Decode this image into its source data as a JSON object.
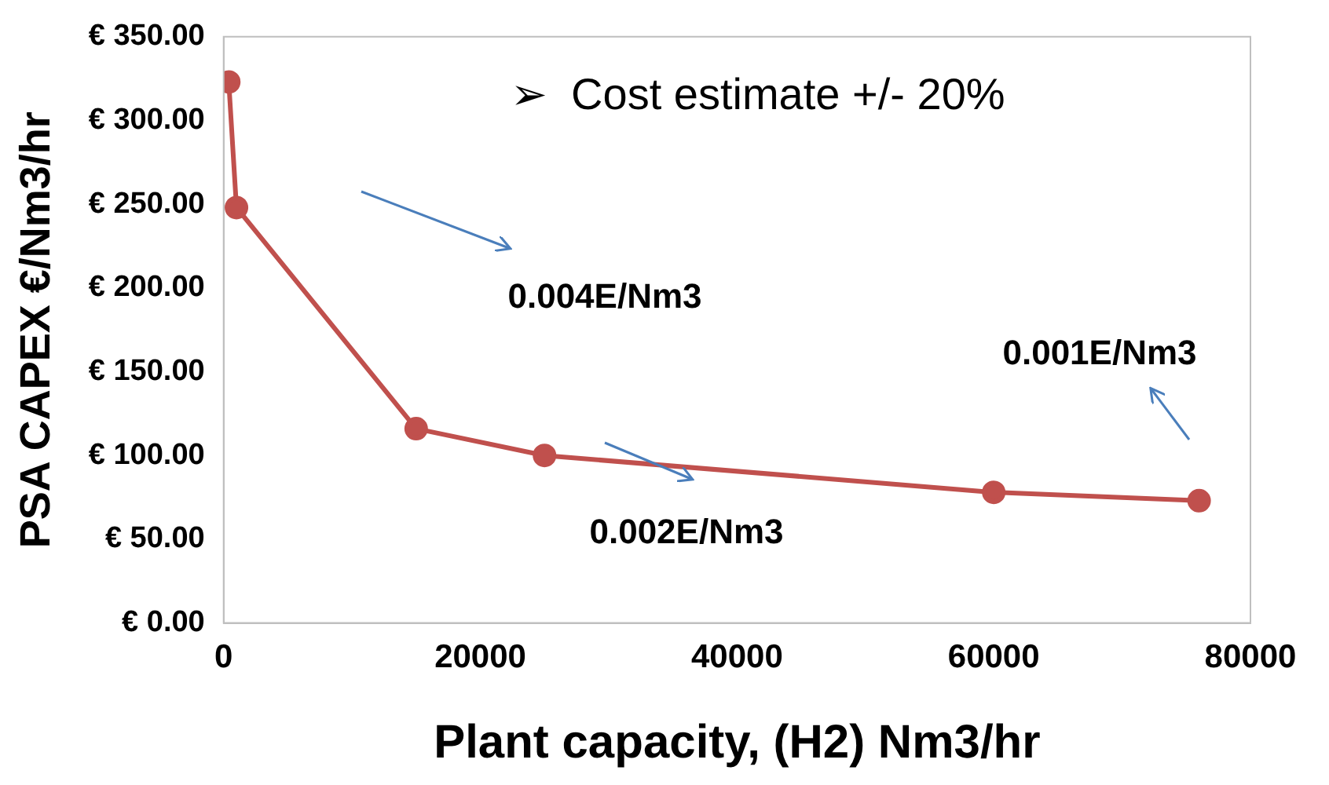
{
  "chart_data": {
    "type": "line",
    "xlabel": "Plant capacity, (H2) Nm3/hr",
    "ylabel": "PSA CAPEX €/Nm3/hr",
    "x": [
      400,
      1000,
      15000,
      25000,
      60000,
      76000
    ],
    "values": [
      323,
      248,
      116,
      100,
      78,
      73
    ],
    "color": "#c0504d",
    "marker": "circle",
    "line_style": "solid",
    "grid": false,
    "legend": false,
    "xlim": [
      0,
      80000
    ],
    "xticks": [
      0,
      20000,
      40000,
      60000,
      80000
    ],
    "ylim": [
      0,
      350
    ],
    "yticks": [
      {
        "value": 0,
        "label": "€ 0.00"
      },
      {
        "value": 50,
        "label": "€ 50.00"
      },
      {
        "value": 100,
        "label": "€ 100.00"
      },
      {
        "value": 150,
        "label": "€ 150.00"
      },
      {
        "value": 200,
        "label": "€ 200.00"
      },
      {
        "value": 250,
        "label": "€ 250.00"
      },
      {
        "value": 300,
        "label": "€ 300.00"
      },
      {
        "value": 350,
        "label": "€ 350.00"
      }
    ],
    "annotations": [
      "➢  Cost estimate +/- 20%",
      "0.004E/Nm3",
      "0.002E/Nm3",
      "0.001E/Nm3"
    ]
  }
}
